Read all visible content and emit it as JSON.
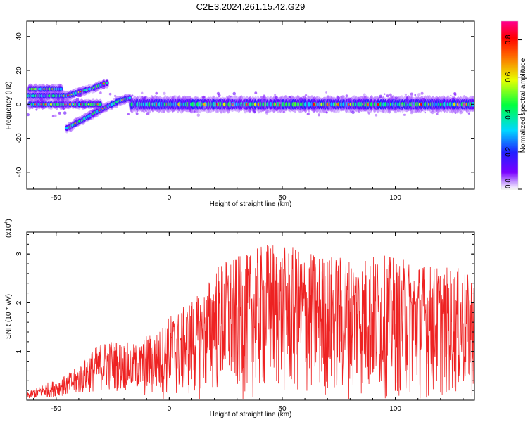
{
  "page": {
    "title": "C2E3.2024.261.15.42.G29"
  },
  "chart_data": [
    {
      "type": "heatmap",
      "title": "C2E3.2024.261.15.42.G29",
      "xlabel": "Height of straight line (km)",
      "ylabel": "Frequency (Hz)",
      "xlim": [
        -63,
        135
      ],
      "ylim": [
        -50,
        49
      ],
      "x_ticks": [
        -50,
        0,
        50,
        100
      ],
      "y_ticks": [
        -40,
        -20,
        0,
        20,
        40
      ],
      "x_tick_labels": [
        "-50",
        "0",
        "50",
        "100"
      ],
      "y_tick_labels": [
        "-40",
        "-20",
        "0",
        "20",
        "40"
      ],
      "colorbar": {
        "label": "Normalized spectral amplitude",
        "range": [
          0,
          0.9
        ],
        "ticks": [
          0.0,
          0.2,
          0.4,
          0.6,
          0.8
        ],
        "tick_labels": [
          "0.0",
          "0.2",
          "0.4",
          "0.6",
          "0.8"
        ],
        "colormap": "rainbow (white-magenta-blue-cyan-green-yellow-red-magenta)"
      },
      "ridges": [
        {
          "name": "main-doppler-band",
          "points": [
            [
              -17,
              0
            ],
            [
              135,
              0
            ]
          ],
          "half_width_hz": 2.5,
          "amplitude": 0.55
        },
        {
          "name": "rising-branch-1",
          "points": [
            [
              -62,
              9
            ],
            [
              -52,
              9
            ],
            [
              -47,
              9
            ]
          ],
          "half_width_hz": 1.5,
          "amplitude": 0.5
        },
        {
          "name": "rising-branch-2",
          "points": [
            [
              -62,
              5
            ],
            [
              -45,
              5
            ],
            [
              -35,
              9
            ],
            [
              -27,
              13
            ]
          ],
          "half_width_hz": 1.5,
          "amplitude": 0.45
        },
        {
          "name": "descending-branch",
          "points": [
            [
              -45,
              -14
            ],
            [
              -38,
              -9
            ],
            [
              -30,
              -3
            ],
            [
              -22,
              2
            ],
            [
              -17,
              4
            ]
          ],
          "half_width_hz": 1.5,
          "amplitude": 0.45
        },
        {
          "name": "early-center",
          "points": [
            [
              -62,
              0
            ],
            [
              -45,
              0
            ],
            [
              -30,
              0
            ]
          ],
          "half_width_hz": 1.5,
          "amplitude": 0.5
        }
      ]
    },
    {
      "type": "line",
      "xlabel": "Height of straight line (km)",
      "ylabel": "SNR (10 * v/v)",
      "y_multiplier_label": "(x10",
      "y_multiplier_exponent": "4",
      "y_multiplier_close": ")",
      "xlim": [
        -63,
        135
      ],
      "ylim": [
        0,
        3.45
      ],
      "x_ticks": [
        -50,
        0,
        50,
        100
      ],
      "y_ticks": [
        1,
        2,
        3
      ],
      "x_tick_labels": [
        "-50",
        "0",
        "50",
        "100"
      ],
      "y_tick_labels": [
        "1",
        "2",
        "3"
      ],
      "series": [
        {
          "color": "#ee2222",
          "envelope": [
            [
              -63,
              0.15
            ],
            [
              -55,
              0.35
            ],
            [
              -48,
              0.45
            ],
            [
              -40,
              0.7
            ],
            [
              -35,
              1.0
            ],
            [
              -30,
              1.2
            ],
            [
              -25,
              1.25
            ],
            [
              -20,
              1.2
            ],
            [
              -13,
              1.15
            ],
            [
              -10,
              1.35
            ],
            [
              -5,
              1.4
            ],
            [
              0,
              1.75
            ],
            [
              5,
              1.85
            ],
            [
              10,
              2.1
            ],
            [
              15,
              2.2
            ],
            [
              20,
              2.75
            ],
            [
              25,
              2.9
            ],
            [
              30,
              2.95
            ],
            [
              35,
              3.0
            ],
            [
              40,
              3.15
            ],
            [
              45,
              3.3
            ],
            [
              50,
              3.15
            ],
            [
              55,
              3.15
            ],
            [
              60,
              3.05
            ],
            [
              70,
              3.0
            ],
            [
              80,
              2.95
            ],
            [
              90,
              3.0
            ],
            [
              100,
              2.95
            ],
            [
              110,
              2.85
            ],
            [
              120,
              2.75
            ],
            [
              130,
              2.7
            ],
            [
              135,
              2.6
            ]
          ]
        }
      ]
    }
  ]
}
